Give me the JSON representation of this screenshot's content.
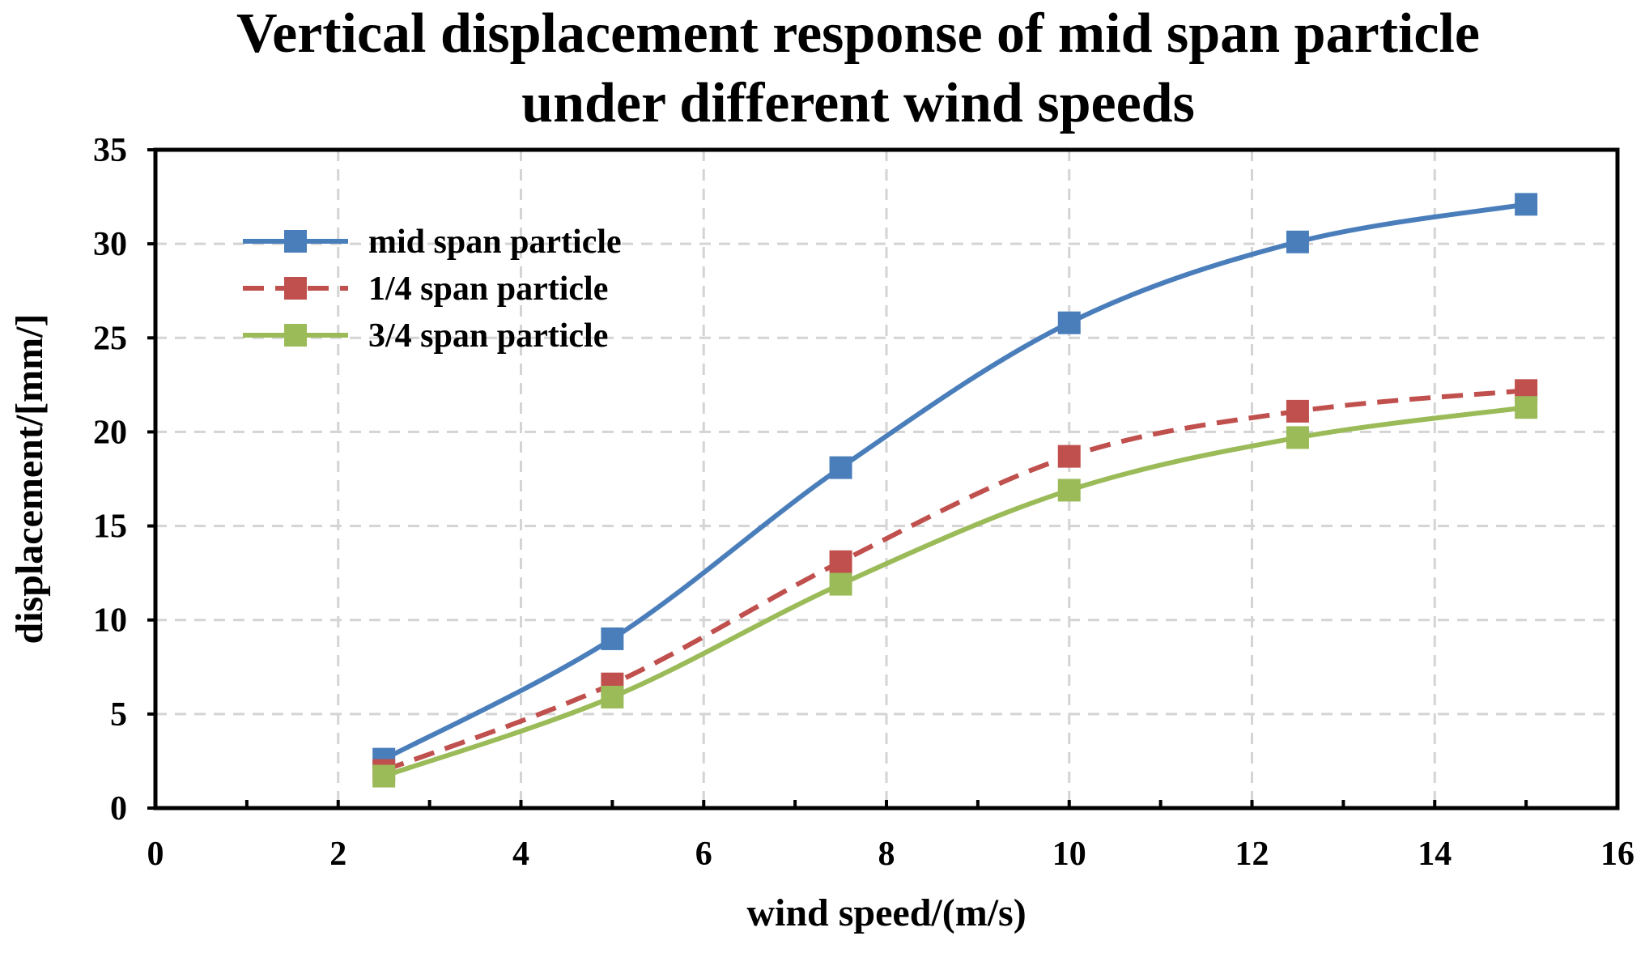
{
  "chart_data": {
    "type": "line",
    "title_lines": [
      "Vertical displacement response of mid span particle",
      "under different wind speeds"
    ],
    "xlabel": "wind speed/(m/s)",
    "ylabel": "displacement/[mm/]",
    "xlim": [
      0,
      16
    ],
    "ylim": [
      0,
      35
    ],
    "x_ticks": [
      0,
      2,
      4,
      6,
      8,
      10,
      12,
      14,
      16
    ],
    "y_ticks": [
      0,
      5,
      10,
      15,
      20,
      25,
      30,
      35
    ],
    "grid": true,
    "legend_position": "top-left",
    "x": [
      2.5,
      5,
      7.5,
      10,
      12.5,
      15
    ],
    "series": [
      {
        "name": "mid span particle",
        "values": [
          2.6,
          9.0,
          18.1,
          25.8,
          30.1,
          32.1
        ],
        "color": "#4a7ebb",
        "line_style": "solid",
        "marker": "square"
      },
      {
        "name": "1/4 span particle",
        "values": [
          2.0,
          6.6,
          13.1,
          18.7,
          21.1,
          22.2
        ],
        "color": "#c0504d",
        "line_style": "dashed",
        "marker": "square"
      },
      {
        "name": "3/4 span particle",
        "values": [
          1.7,
          5.9,
          11.9,
          16.9,
          19.7,
          21.3
        ],
        "color": "#9bbb59",
        "line_style": "solid",
        "marker": "square"
      }
    ]
  }
}
